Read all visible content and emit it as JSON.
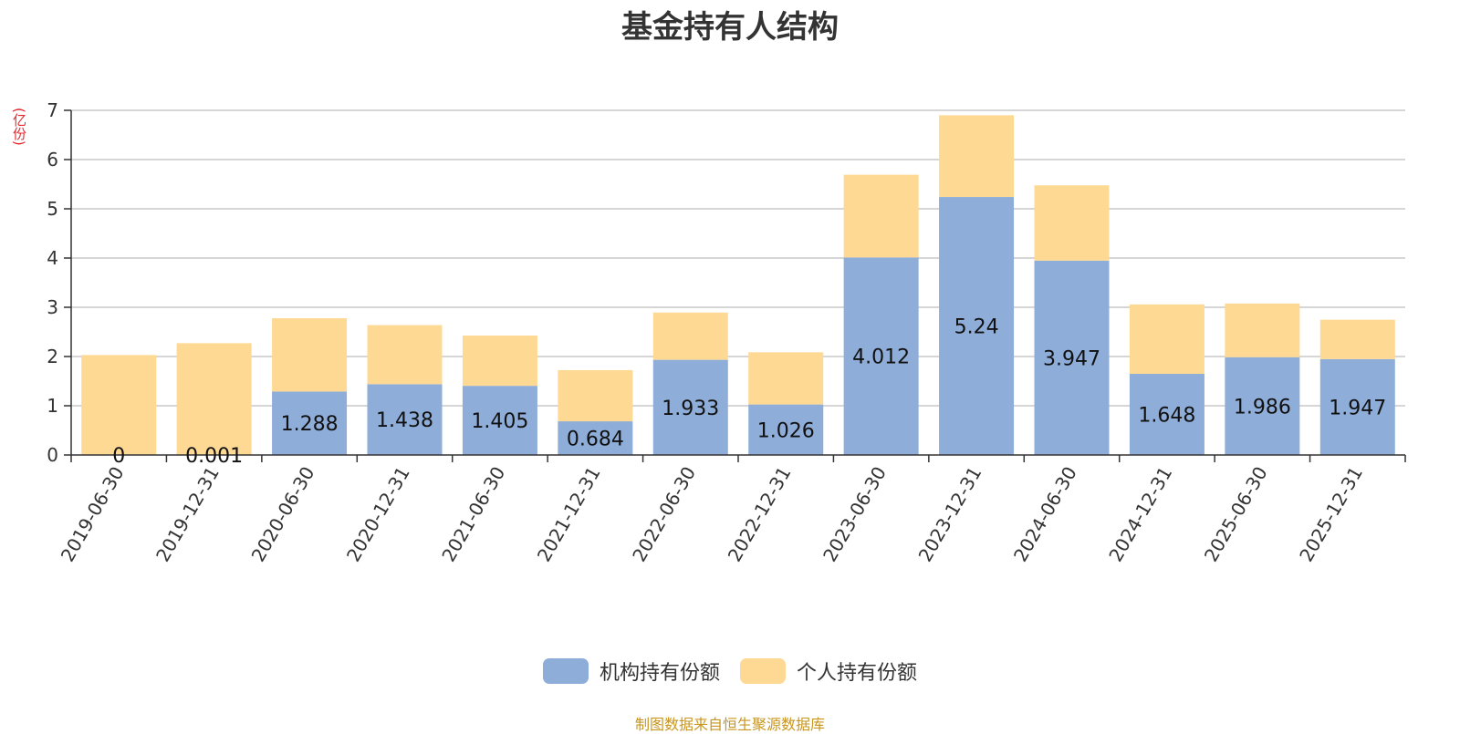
{
  "chart_data": {
    "type": "bar",
    "stacked": true,
    "title": "基金持有人结构",
    "unit_label": "(亿份)",
    "categories": [
      "2019-06-30",
      "2019-12-31",
      "2020-06-30",
      "2020-12-31",
      "2021-06-30",
      "2021-12-31",
      "2022-06-30",
      "2022-12-31",
      "2023-06-30",
      "2023-12-31",
      "2024-06-30",
      "2024-12-31",
      "2025-06-30",
      "2025-12-31"
    ],
    "series": [
      {
        "name": "机构持有份额",
        "color": "#8eadd9",
        "values": [
          0,
          0.001,
          1.288,
          1.438,
          1.405,
          0.684,
          1.933,
          1.026,
          4.012,
          5.24,
          3.947,
          1.648,
          1.986,
          1.947
        ],
        "labels": [
          "0",
          "0.001",
          "1.288",
          "1.438",
          "1.405",
          "0.684",
          "1.933",
          "1.026",
          "4.012",
          "5.24",
          "3.947",
          "1.648",
          "1.986",
          "1.947"
        ]
      },
      {
        "name": "个人持有份额",
        "color": "#fed994",
        "values": [
          2.03,
          2.27,
          1.49,
          1.2,
          1.02,
          1.04,
          0.96,
          1.06,
          1.68,
          1.66,
          1.53,
          1.41,
          1.09,
          0.8
        ]
      }
    ],
    "yticks": [
      "0",
      "1",
      "2",
      "3",
      "4",
      "5",
      "6",
      "7"
    ],
    "ylim": [
      0,
      7
    ],
    "grid": true,
    "legend_position": "bottom-center"
  },
  "source_note": "制图数据来自恒生聚源数据库"
}
